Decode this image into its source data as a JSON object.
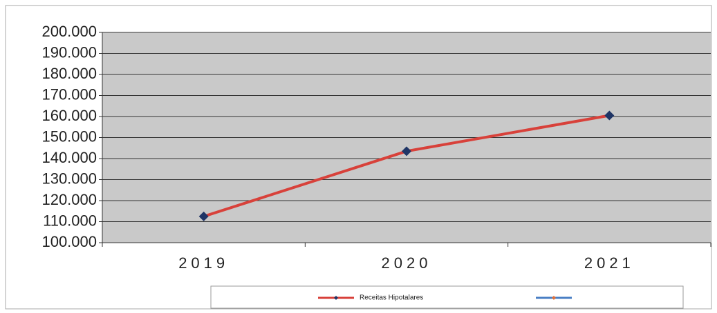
{
  "chart_data": {
    "type": "line",
    "categories": [
      "2019",
      "2020",
      "2021"
    ],
    "series": [
      {
        "name": "Receitas Hipotalares",
        "color": "#d8413a",
        "marker_color": "#1f3566",
        "values": [
          112500,
          143500,
          160500
        ]
      },
      {
        "color": "#4a7fc4",
        "marker_color": "#e0703a",
        "values": [
          null,
          null,
          null
        ]
      }
    ],
    "ylim": [
      100000,
      200000
    ],
    "yticks": [
      {
        "value": 100000,
        "label": "100.000"
      },
      {
        "value": 110000,
        "label": "110.000"
      },
      {
        "value": 120000,
        "label": "120.000"
      },
      {
        "value": 130000,
        "label": "130.000"
      },
      {
        "value": 140000,
        "label": "140.000"
      },
      {
        "value": 150000,
        "label": "150.000"
      },
      {
        "value": 160000,
        "label": "160.000"
      },
      {
        "value": 170000,
        "label": "170.000"
      },
      {
        "value": 180000,
        "label": "180.000"
      },
      {
        "value": 190000,
        "label": "190.000"
      },
      {
        "value": 200000,
        "label": "200.000"
      }
    ],
    "grid": true,
    "legend": "bottom"
  }
}
